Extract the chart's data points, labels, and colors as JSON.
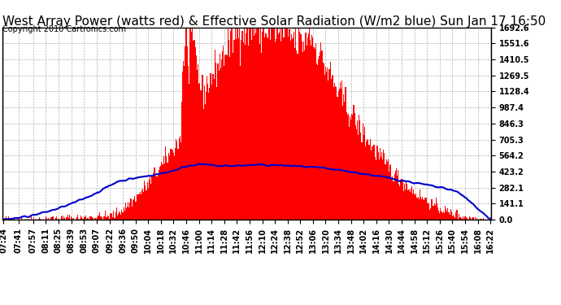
{
  "title": "West Array Power (watts red) & Effective Solar Radiation (W/m2 blue) Sun Jan 17 16:50",
  "copyright": "Copyright 2010 Cartronics.com",
  "ymax": 1692.6,
  "ymin": 0.0,
  "yticks": [
    0.0,
    141.1,
    282.1,
    423.2,
    564.2,
    705.3,
    846.3,
    987.4,
    1128.4,
    1269.5,
    1410.5,
    1551.6,
    1692.6
  ],
  "background_color": "#ffffff",
  "fill_color": "#ff0000",
  "line_color": "#0000cc",
  "grid_color": "#aaaaaa",
  "title_fontsize": 11,
  "copyright_fontsize": 7,
  "tick_fontsize": 7,
  "xtick_labels": [
    "07:24",
    "07:41",
    "07:57",
    "08:11",
    "08:25",
    "08:39",
    "08:53",
    "09:07",
    "09:22",
    "09:36",
    "09:50",
    "10:04",
    "10:18",
    "10:32",
    "10:46",
    "11:00",
    "11:14",
    "11:28",
    "11:42",
    "11:56",
    "12:10",
    "12:24",
    "12:38",
    "12:52",
    "13:06",
    "13:20",
    "13:34",
    "13:48",
    "14:02",
    "14:16",
    "14:30",
    "14:44",
    "14:58",
    "15:12",
    "15:26",
    "15:40",
    "15:54",
    "16:08",
    "16:22"
  ]
}
